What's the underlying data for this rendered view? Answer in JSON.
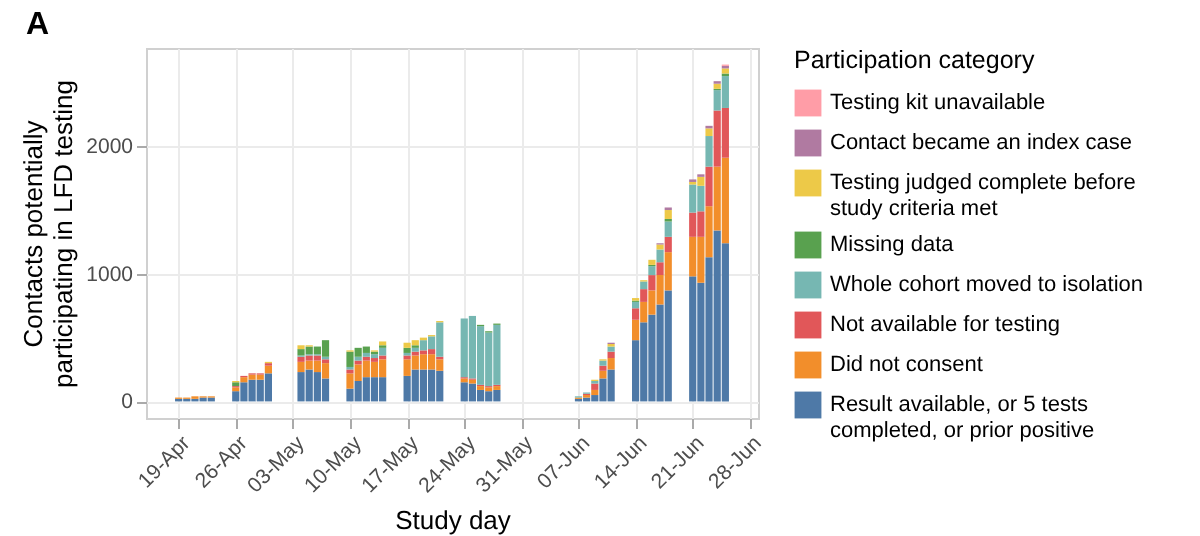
{
  "chart_data": {
    "type": "bar",
    "stacked": true,
    "title": "A",
    "xlabel": "Study day",
    "ylabel": "Contacts potentially participating in LFD testing",
    "legend_title": "Participation category",
    "legend": "right",
    "grid": true,
    "x": [
      "--04-19",
      "--04-20",
      "--04-21",
      "--04-22",
      "--04-23",
      "--04-26",
      "--04-27",
      "--04-28",
      "--04-29",
      "--04-30",
      "--05-04",
      "--05-05",
      "--05-06",
      "--05-07",
      "--05-10",
      "--05-11",
      "--05-12",
      "--05-13",
      "--05-14",
      "--05-17",
      "--05-18",
      "--05-19",
      "--05-20",
      "--05-21",
      "--05-24",
      "--05-25",
      "--05-26",
      "--05-27",
      "--05-28",
      "--06-07",
      "--06-08",
      "--06-09",
      "--06-10",
      "--06-11",
      "--06-14",
      "--06-15",
      "--06-16",
      "--06-17",
      "--06-18",
      "--06-21",
      "--06-22",
      "--06-23",
      "--06-24",
      "--06-25"
    ],
    "xlim": [
      "--04-15",
      "--06-29"
    ],
    "xticks": [
      {
        "value": "--04-19",
        "label": "19-Apr"
      },
      {
        "value": "--04-26",
        "label": "26-Apr"
      },
      {
        "value": "--05-03",
        "label": "03-May"
      },
      {
        "value": "--05-10",
        "label": "10-May"
      },
      {
        "value": "--05-17",
        "label": "17-May"
      },
      {
        "value": "--05-24",
        "label": "24-May"
      },
      {
        "value": "--05-31",
        "label": "31-May"
      },
      {
        "value": "--06-07",
        "label": "07-Jun"
      },
      {
        "value": "--06-14",
        "label": "14-Jun"
      },
      {
        "value": "--06-21",
        "label": "21-Jun"
      },
      {
        "value": "--06-28",
        "label": "28-Jun"
      }
    ],
    "ylim": [
      -130,
      2770
    ],
    "yticks": [
      0,
      1000,
      2000
    ],
    "series": [
      {
        "name": "Result available, or 5 tests completed, or prior positive",
        "color": "#4e79a7",
        "values": [
          20,
          20,
          20,
          30,
          30,
          80,
          150,
          170,
          170,
          220,
          230,
          250,
          230,
          180,
          100,
          160,
          190,
          190,
          190,
          200,
          250,
          250,
          250,
          240,
          150,
          140,
          90,
          80,
          90,
          20,
          30,
          50,
          180,
          250,
          480,
          620,
          680,
          760,
          870,
          980,
          930,
          1130,
          1340,
          1240
        ]
      },
      {
        "name": "Did not consent",
        "color": "#f28e2b",
        "values": [
          10,
          10,
          20,
          10,
          10,
          30,
          40,
          40,
          40,
          60,
          80,
          70,
          90,
          120,
          120,
          130,
          130,
          120,
          140,
          130,
          110,
          120,
          120,
          90,
          30,
          30,
          30,
          30,
          30,
          10,
          20,
          40,
          60,
          90,
          160,
          160,
          190,
          230,
          300,
          310,
          360,
          400,
          500,
          670
        ]
      },
      {
        "name": "Not available for testing",
        "color": "#e15759",
        "values": [
          null,
          null,
          null,
          null,
          null,
          10,
          10,
          10,
          10,
          20,
          40,
          40,
          40,
          30,
          30,
          30,
          30,
          30,
          30,
          30,
          30,
          30,
          40,
          20,
          10,
          10,
          10,
          10,
          10,
          null,
          10,
          50,
          40,
          50,
          90,
          100,
          120,
          100,
          120,
          190,
          200,
          310,
          440,
          390
        ]
      },
      {
        "name": "Whole cohort moved to isolation",
        "color": "#76b7b2",
        "values": [
          null,
          null,
          null,
          null,
          null,
          null,
          null,
          null,
          null,
          null,
          10,
          10,
          10,
          20,
          20,
          30,
          30,
          30,
          60,
          20,
          30,
          80,
          100,
          270,
          460,
          490,
          460,
          420,
          470,
          10,
          10,
          20,
          40,
          40,
          50,
          60,
          70,
          100,
          120,
          220,
          200,
          240,
          160,
          250
        ]
      },
      {
        "name": "Missing data",
        "color": "#59a14f",
        "values": [
          null,
          null,
          null,
          null,
          null,
          30,
          null,
          null,
          null,
          null,
          50,
          60,
          60,
          130,
          120,
          70,
          50,
          20,
          20,
          40,
          20,
          null,
          null,
          null,
          null,
          null,
          10,
          10,
          10,
          null,
          null,
          null,
          null,
          null,
          10,
          null,
          10,
          null,
          20,
          null,
          null,
          null,
          10,
          20
        ]
      },
      {
        "name": "Testing judged complete before study criteria met",
        "color": "#edc948",
        "values": [
          null,
          null,
          null,
          null,
          null,
          10,
          null,
          null,
          null,
          10,
          30,
          10,
          null,
          null,
          10,
          null,
          null,
          10,
          30,
          40,
          40,
          20,
          10,
          10,
          null,
          null,
          null,
          null,
          null,
          null,
          null,
          10,
          10,
          20,
          20,
          10,
          40,
          40,
          70,
          20,
          70,
          60,
          40,
          40
        ]
      },
      {
        "name": "Contact became an index case",
        "color": "#b07aa1",
        "values": [
          null,
          null,
          null,
          null,
          null,
          null,
          null,
          null,
          null,
          null,
          null,
          null,
          null,
          null,
          null,
          null,
          null,
          null,
          null,
          null,
          null,
          null,
          null,
          null,
          null,
          null,
          null,
          null,
          null,
          null,
          null,
          null,
          null,
          10,
          null,
          null,
          null,
          10,
          20,
          20,
          20,
          20,
          20,
          20
        ]
      },
      {
        "name": "Testing kit unavailable",
        "color": "#ff9da7",
        "values": [
          null,
          null,
          null,
          null,
          null,
          null,
          null,
          null,
          null,
          null,
          null,
          null,
          null,
          null,
          null,
          null,
          null,
          null,
          null,
          null,
          null,
          null,
          null,
          null,
          null,
          null,
          null,
          null,
          null,
          null,
          null,
          null,
          null,
          null,
          null,
          null,
          null,
          null,
          null,
          null,
          null,
          null,
          null,
          10
        ]
      }
    ]
  }
}
